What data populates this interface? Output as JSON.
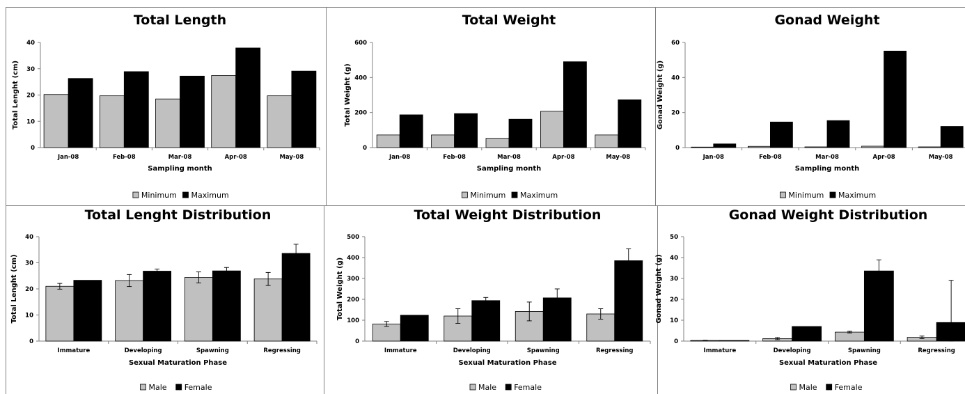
{
  "legends": {
    "minmax": [
      "Minimum",
      "Maximum"
    ],
    "sex": [
      "Male",
      "Female"
    ]
  },
  "colors": {
    "light": "#c0c0c0",
    "dark": "#000000",
    "frame": "#7f7f7f"
  },
  "chart_data": [
    {
      "type": "bar",
      "title": "Total Length",
      "xlabel": "Sampling month",
      "ylabel": "Total Lenght (cm)",
      "ylim": [
        0,
        40
      ],
      "yticks": [
        0,
        10,
        20,
        30,
        40
      ],
      "categories": [
        "Jan-08",
        "Feb-08",
        "Mar-08",
        "Apr-08",
        "May-08"
      ],
      "series": [
        {
          "name": "Minimum",
          "values": [
            20.2,
            19.7,
            18.5,
            27.4,
            19.7
          ]
        },
        {
          "name": "Maximum",
          "values": [
            26.3,
            28.9,
            27.2,
            37.9,
            29.1
          ]
        }
      ],
      "legend_position": "bottom",
      "grid": false
    },
    {
      "type": "bar",
      "title": "Total Weight",
      "xlabel": "Sampling month",
      "ylabel": "Total Weight (g)",
      "ylim": [
        0,
        600
      ],
      "yticks": [
        0,
        200,
        400,
        600
      ],
      "categories": [
        "Jan-08",
        "Feb-08",
        "Mar-08",
        "Apr-08",
        "May-08"
      ],
      "series": [
        {
          "name": "Minimum",
          "values": [
            72,
            72,
            53,
            207,
            72
          ]
        },
        {
          "name": "Maximum",
          "values": [
            187,
            194,
            162,
            490,
            273
          ]
        }
      ],
      "legend_position": "bottom",
      "grid": false
    },
    {
      "type": "bar",
      "title": "Gonad Weight",
      "xlabel": "Sampling month",
      "ylabel": "Gonad Weight (g)",
      "ylim": [
        0,
        60
      ],
      "yticks": [
        0,
        20,
        40,
        60
      ],
      "categories": [
        "Jan-08",
        "Feb-08",
        "Mar-08",
        "Apr-08",
        "May-08"
      ],
      "series": [
        {
          "name": "Minimum",
          "values": [
            0.3,
            0.7,
            0.4,
            0.8,
            0.4
          ]
        },
        {
          "name": "Maximum",
          "values": [
            2.1,
            14.6,
            15.4,
            55.1,
            12.1
          ]
        }
      ],
      "legend_position": "bottom",
      "grid": false
    },
    {
      "type": "bar",
      "title": "Total Lenght Distribution",
      "xlabel": "Sexual Maturation Phase",
      "ylabel": "Total Lenght (cm)",
      "ylim": [
        0,
        40
      ],
      "yticks": [
        0,
        10,
        20,
        30,
        40
      ],
      "categories": [
        "Immature",
        "Developing",
        "Spawning",
        "Regressing"
      ],
      "series": [
        {
          "name": "Male",
          "values": [
            21.0,
            23.2,
            24.4,
            23.8
          ],
          "errors": [
            1.1,
            2.3,
            2.1,
            2.5
          ]
        },
        {
          "name": "Female",
          "values": [
            23.3,
            26.8,
            26.9,
            33.6
          ],
          "errors": [
            0.0,
            0.8,
            1.3,
            3.5
          ]
        }
      ],
      "legend_position": "bottom",
      "grid": false
    },
    {
      "type": "bar",
      "title": "Total Weight Distribution",
      "xlabel": "Sexual Maturation Phase",
      "ylabel": "Total Weight (g)",
      "ylim": [
        0,
        500
      ],
      "yticks": [
        0,
        100,
        200,
        300,
        400,
        500
      ],
      "categories": [
        "Immature",
        "Developing",
        "Spawning",
        "Regressing"
      ],
      "series": [
        {
          "name": "Male",
          "values": [
            82,
            120,
            142,
            130
          ],
          "errors": [
            12,
            35,
            45,
            25
          ]
        },
        {
          "name": "Female",
          "values": [
            124,
            194,
            207,
            385
          ],
          "errors": [
            0,
            15,
            43,
            57
          ]
        }
      ],
      "legend_position": "bottom",
      "grid": false
    },
    {
      "type": "bar",
      "title": "Gonad Weight Distribution",
      "xlabel": "Sexual Maturation Phase",
      "ylabel": "Gonad Weight (g)",
      "ylim": [
        0,
        50
      ],
      "yticks": [
        0,
        10,
        20,
        30,
        40,
        50
      ],
      "categories": [
        "Immature",
        "Developing",
        "Spawning",
        "Regressing"
      ],
      "series": [
        {
          "name": "Male",
          "values": [
            0.3,
            1.2,
            4.3,
            1.8
          ],
          "errors": [
            0.1,
            0.5,
            0.4,
            0.6
          ]
        },
        {
          "name": "Female",
          "values": [
            0.3,
            7.0,
            33.6,
            8.9
          ],
          "errors": [
            0.0,
            0.0,
            5.3,
            20.2
          ]
        }
      ],
      "legend_position": "bottom",
      "grid": false
    }
  ]
}
